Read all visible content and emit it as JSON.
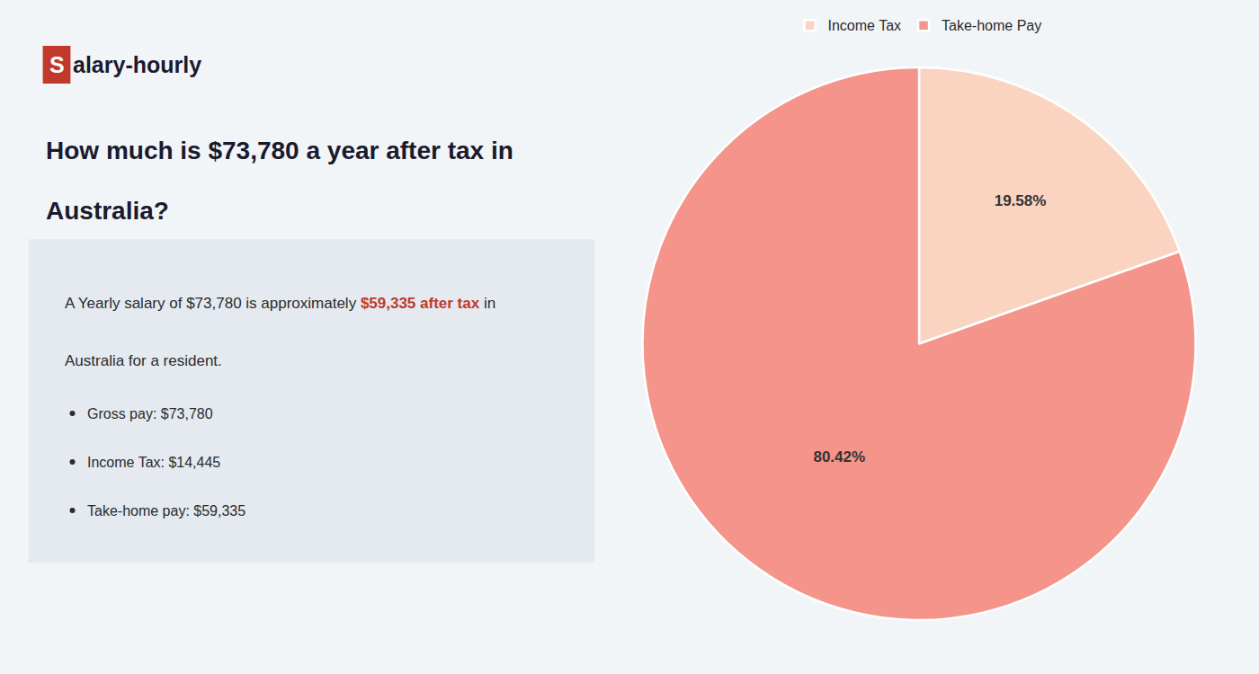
{
  "chart_data": {
    "type": "pie",
    "title": "How much is $73,780 a year after tax in Australia?",
    "annotations": [
      {
        "text": "Salary-hourly"
      },
      {
        "text": "A Yearly salary of $73,780 is approximately $59,335 after tax in",
        "highlight": "$59,335 after tax"
      },
      {
        "text": "Australia for a resident."
      },
      {
        "text": "Gross pay: $73,780",
        "marker": "bullet"
      },
      {
        "text": "Income Tax: $14,445",
        "marker": "bullet"
      },
      {
        "text": "Take-home pay: $59,335",
        "marker": "bullet"
      }
    ],
    "categories": [
      "Income Tax",
      "Take-home Pay"
    ],
    "values": [
      19.58,
      80.42
    ],
    "value_labels": [
      "19.58%",
      "80.42%"
    ],
    "colors": [
      "#fad4c0",
      "#f4948a"
    ],
    "data_labels": true,
    "legend": "top"
  }
}
